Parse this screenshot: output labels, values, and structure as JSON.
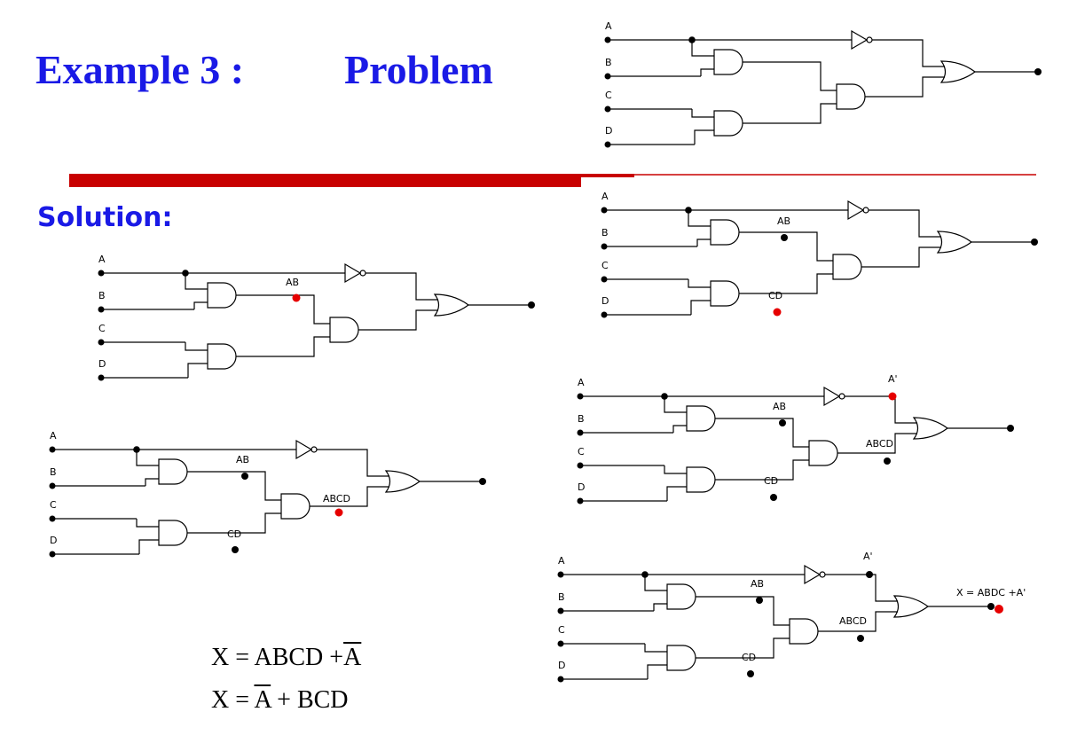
{
  "header": {
    "example_label": "Example 3 :",
    "problem_label": "Problem"
  },
  "solution_label": "Solution:",
  "colors": {
    "title": "#1a1ae6",
    "highlight": "#e60000",
    "bar": "#c80000"
  },
  "inputs": [
    "A",
    "B",
    "C",
    "D"
  ],
  "signals": {
    "ab": "AB",
    "cd": "CD",
    "abcd": "ABCD",
    "a_not": "A'",
    "output": "X = ABDC +A'"
  },
  "equations": {
    "eq1_prefix": "X = ABCD +",
    "eq1_overlined": "A",
    "eq2_prefix": "X = ",
    "eq2_overlined": "A",
    "eq2_suffix": " + BCD"
  }
}
